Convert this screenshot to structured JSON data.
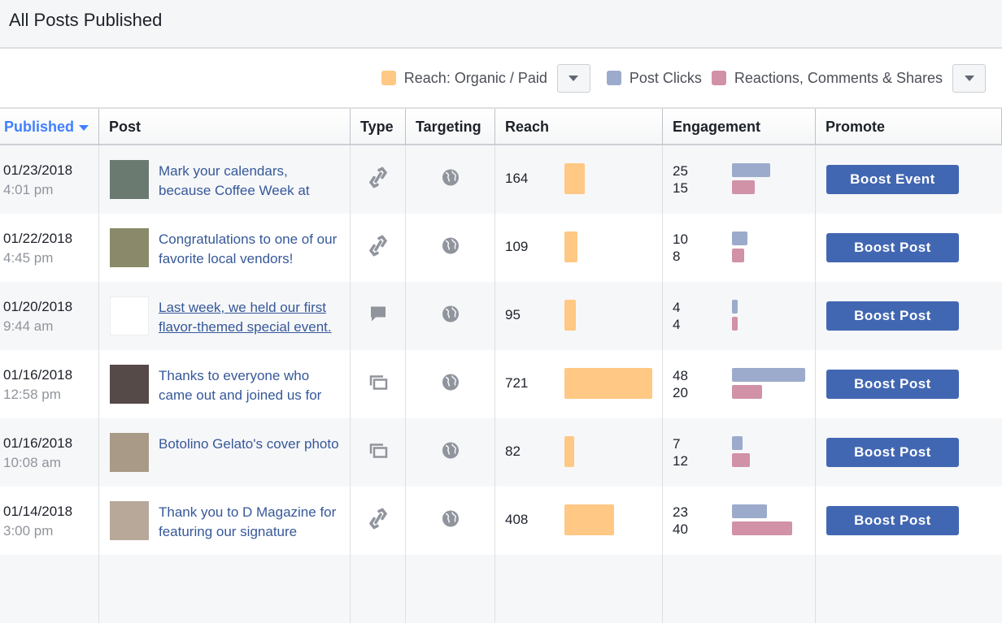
{
  "title": "All Posts Published",
  "legend": {
    "reach": "Reach: Organic / Paid",
    "clicks": "Post Clicks",
    "reactions": "Reactions, Comments & Shares"
  },
  "colors": {
    "reach": "#ffc884",
    "clicks": "#9cabcb",
    "reactions": "#d191a7",
    "button": "#4267b2",
    "link": "#365899"
  },
  "columns": [
    "Published",
    "Post",
    "Type",
    "Targeting",
    "Reach",
    "Engagement",
    "Promote"
  ],
  "rows": [
    {
      "date": "01/23/2018",
      "time": "4:01 pm",
      "post": "Mark your calendars, because Coffee Week at",
      "type": "link-icon",
      "reach": 164,
      "clicks": 25,
      "reactions": 15,
      "button": "Boost Event",
      "thumb": "#6a7a70"
    },
    {
      "date": "01/22/2018",
      "time": "4:45 pm",
      "post": "Congratulations to one of our favorite local vendors!",
      "type": "link-icon",
      "reach": 109,
      "clicks": 10,
      "reactions": 8,
      "button": "Boost Post",
      "thumb": "#8a8a6a"
    },
    {
      "date": "01/20/2018",
      "time": "9:44 am",
      "post": "Last week, we held our first flavor-themed special event.",
      "type": "status-icon",
      "reach": 95,
      "clicks": 4,
      "reactions": 4,
      "button": "Boost Post",
      "thumb": "#ffffff",
      "underline": true
    },
    {
      "date": "01/16/2018",
      "time": "12:58 pm",
      "post": "Thanks to everyone who came out and joined us for",
      "type": "album-icon",
      "reach": 721,
      "clicks": 48,
      "reactions": 20,
      "button": "Boost Post",
      "thumb": "#554a48"
    },
    {
      "date": "01/16/2018",
      "time": "10:08 am",
      "post": "Botolino Gelato's cover photo",
      "type": "album-icon",
      "reach": 82,
      "clicks": 7,
      "reactions": 12,
      "button": "Boost Post",
      "thumb": "#a89a86"
    },
    {
      "date": "01/14/2018",
      "time": "3:00 pm",
      "post": "Thank you to D Magazine for featuring our signature",
      "type": "link-icon",
      "reach": 408,
      "clicks": 23,
      "reactions": 40,
      "button": "Boost Post",
      "thumb": "#b8a89a"
    }
  ]
}
